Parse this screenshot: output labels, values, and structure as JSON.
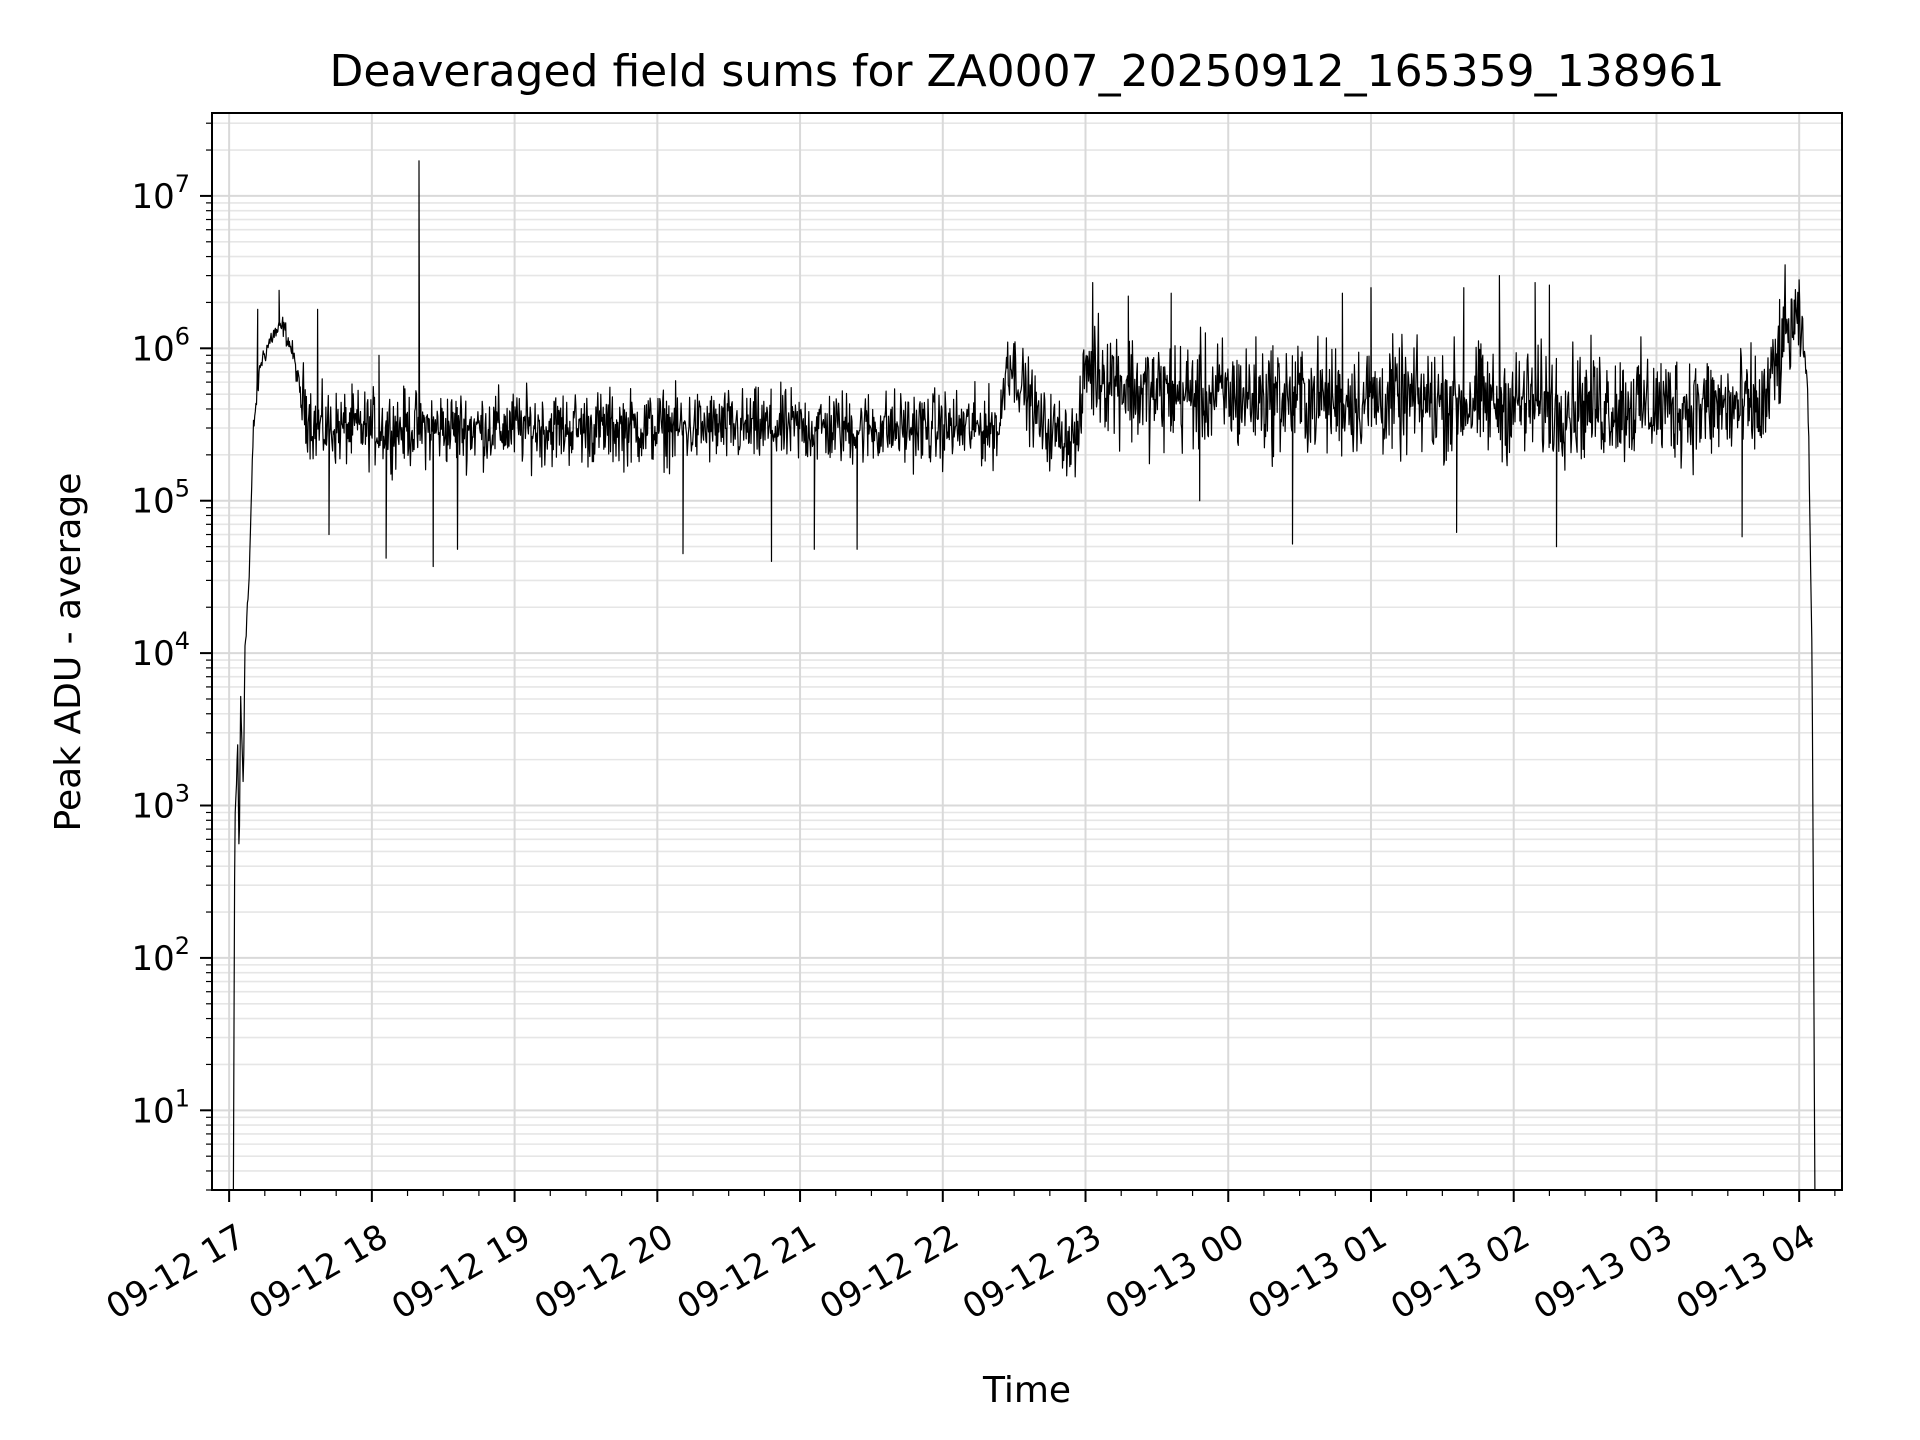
{
  "chart_data": {
    "type": "line",
    "title": "Deaveraged field sums for ZA0007_20250912_165359_138961",
    "xlabel": "Time",
    "ylabel": "Peak ADU - average",
    "yscale": "log",
    "ylim": [
      3,
      35000000
    ],
    "xlim_hours": [
      -0.12,
      11.3
    ],
    "grid": "major and minor, light gray",
    "legend": "none",
    "x_tick_labels": [
      "09-12 17",
      "09-12 18",
      "09-12 19",
      "09-12 20",
      "09-12 21",
      "09-12 22",
      "09-12 23",
      "09-13 00",
      "09-13 01",
      "09-13 02",
      "09-13 03",
      "09-13 04"
    ],
    "y_tick_labels": [
      {
        "base": "10",
        "exp": "1"
      },
      {
        "base": "10",
        "exp": "2"
      },
      {
        "base": "10",
        "exp": "3"
      },
      {
        "base": "10",
        "exp": "4"
      },
      {
        "base": "10",
        "exp": "5"
      },
      {
        "base": "10",
        "exp": "6"
      },
      {
        "base": "10",
        "exp": "7"
      }
    ],
    "x_hours_note": "hours after 09-12 17:00",
    "series": [
      {
        "name": "field sums",
        "color": "#000000",
        "keypoints": [
          {
            "t": 0.03,
            "v": 3
          },
          {
            "t": 0.04,
            "v": 700
          },
          {
            "t": 0.06,
            "v": 2500
          },
          {
            "t": 0.07,
            "v": 400
          },
          {
            "t": 0.08,
            "v": 5000
          },
          {
            "t": 0.1,
            "v": 1300
          },
          {
            "t": 0.11,
            "v": 11000
          },
          {
            "t": 0.14,
            "v": 30000
          },
          {
            "t": 0.17,
            "v": 300000
          },
          {
            "t": 0.22,
            "v": 800000
          },
          {
            "t": 0.3,
            "v": 1200000
          },
          {
            "t": 0.38,
            "v": 1400000
          },
          {
            "t": 0.45,
            "v": 900000
          },
          {
            "t": 0.5,
            "v": 500000
          },
          {
            "t": 0.6,
            "v": 300000
          },
          {
            "t": 5.4,
            "v": 300000
          },
          {
            "t": 5.45,
            "v": 900000
          },
          {
            "t": 5.55,
            "v": 600000
          },
          {
            "t": 5.7,
            "v": 300000
          },
          {
            "t": 5.95,
            "v": 250000
          },
          {
            "t": 6.0,
            "v": 800000
          },
          {
            "t": 6.4,
            "v": 500000
          },
          {
            "t": 10.75,
            "v": 400000
          },
          {
            "t": 10.9,
            "v": 1200000
          },
          {
            "t": 11.0,
            "v": 1500000
          },
          {
            "t": 11.06,
            "v": 600000
          },
          {
            "t": 11.09,
            "v": 10000
          },
          {
            "t": 11.11,
            "v": 3
          }
        ],
        "spikes": [
          {
            "t": 1.33,
            "v": 17000000
          },
          {
            "t": 1.05,
            "v": 900000
          },
          {
            "t": 0.2,
            "v": 1800000
          },
          {
            "t": 0.35,
            "v": 2400000
          },
          {
            "t": 0.62,
            "v": 1800000
          },
          {
            "t": 6.05,
            "v": 2700000
          },
          {
            "t": 6.3,
            "v": 2200000
          },
          {
            "t": 6.6,
            "v": 2300000
          },
          {
            "t": 7.8,
            "v": 2300000
          },
          {
            "t": 8.0,
            "v": 2500000
          },
          {
            "t": 8.65,
            "v": 2500000
          },
          {
            "t": 8.9,
            "v": 3000000
          },
          {
            "t": 9.15,
            "v": 2700000
          },
          {
            "t": 9.25,
            "v": 2600000
          },
          {
            "t": 10.95,
            "v": 2000000
          }
        ],
        "dips": [
          {
            "t": 0.7,
            "v": 60000
          },
          {
            "t": 1.1,
            "v": 42000
          },
          {
            "t": 1.43,
            "v": 37000
          },
          {
            "t": 1.6,
            "v": 48000
          },
          {
            "t": 3.18,
            "v": 45000
          },
          {
            "t": 3.8,
            "v": 40000
          },
          {
            "t": 4.1,
            "v": 48000
          },
          {
            "t": 4.4,
            "v": 48000
          },
          {
            "t": 6.8,
            "v": 100000
          },
          {
            "t": 7.45,
            "v": 52000
          },
          {
            "t": 8.6,
            "v": 62000
          },
          {
            "t": 9.3,
            "v": 50000
          },
          {
            "t": 10.6,
            "v": 58000
          }
        ]
      }
    ]
  }
}
